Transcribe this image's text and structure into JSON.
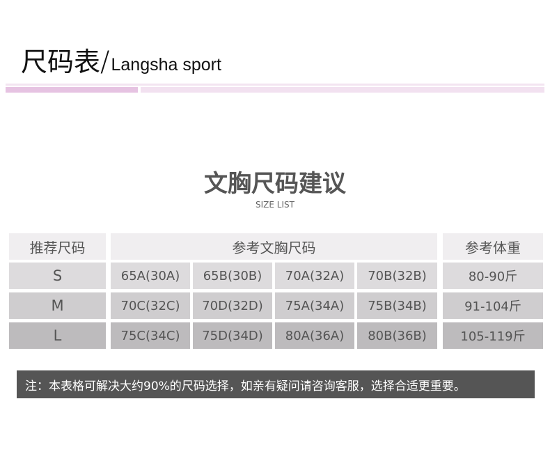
{
  "header": {
    "title_cn": "尺码表",
    "slash": "/",
    "title_en": "Langsha sport"
  },
  "section": {
    "title": "文胸尺码建议",
    "subtitle": "SIZE LIST"
  },
  "table": {
    "headers": [
      "推荐尺码",
      "参考文胸尺码",
      "参考体重"
    ],
    "rows": [
      {
        "size": "S",
        "bras": [
          "65A(30A)",
          "65B(30B)",
          "70A(32A)",
          "70B(32B)"
        ],
        "weight": "80-90斤"
      },
      {
        "size": "M",
        "bras": [
          "70C(32C)",
          "70D(32D)",
          "75A(34A)",
          "75B(34B)"
        ],
        "weight": "91-104斤"
      },
      {
        "size": "L",
        "bras": [
          "75C(34C)",
          "75D(34D)",
          "80A(36A)",
          "80B(36B)"
        ],
        "weight": "105-119斤"
      }
    ]
  },
  "note": "注：本表格可解决大约90%的尺码选择，如亲有疑问请咨询客服，选择合适更重要。",
  "colors": {
    "accent": "#e6c3e2",
    "note_bg": "#555555"
  }
}
